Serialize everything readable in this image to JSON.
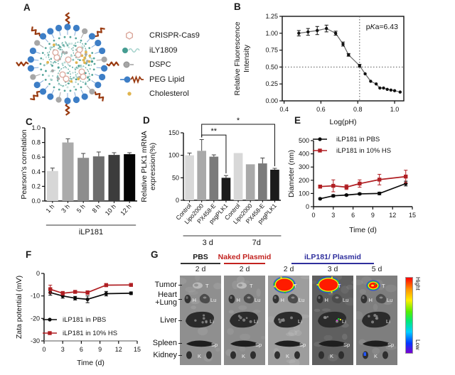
{
  "panels": {
    "A": "A",
    "B": "B",
    "C": "C",
    "D": "D",
    "E": "E",
    "F": "F",
    "G": "G"
  },
  "panelA": {
    "particle_colors": {
      "crispr": "#dba79b",
      "ily": "#459c91",
      "ily_light": "#a8d4ce",
      "dspc": "#a6a6a6",
      "peg": "#3d7ec6",
      "peg_tail": "#993a10",
      "chol": "#e0b44e"
    },
    "legend": [
      {
        "icon": "crispr-cas9-icon",
        "label": "CRISPR-Cas9",
        "color": "#dba79b"
      },
      {
        "icon": "ily1809-icon",
        "label": "iLY1809",
        "color": "#459c91"
      },
      {
        "icon": "dspc-icon",
        "label": "DSPC",
        "color": "#a6a6a6"
      },
      {
        "icon": "peg-lipid-icon",
        "label": "PEG Lipid",
        "color": "#3d7ec6"
      },
      {
        "icon": "cholesterol-icon",
        "label": "Cholesterol",
        "color": "#e0b44e"
      }
    ]
  },
  "chart_data": [
    {
      "id": "B",
      "type": "line",
      "frame": true,
      "xlabel": "Log(pH)",
      "ylabel_lines": [
        "Relative Fluorescence",
        "Intensity"
      ],
      "annotation": "pKa=6.43",
      "xlim": [
        0.39,
        1.05
      ],
      "ylim": [
        0,
        1.25
      ],
      "xticks": [
        0.4,
        0.6,
        0.8,
        1.0
      ],
      "xtick_labels": [
        "0.4",
        "0.6",
        "0.8",
        "1.0"
      ],
      "yticks": [
        0,
        0.25,
        0.5,
        0.75,
        1,
        1.25
      ],
      "ytick_labels": [
        "0.00",
        "0.25",
        "0.50",
        "0.75",
        "1.00",
        "1.25"
      ],
      "hline": 0.5,
      "vline": 0.81,
      "x": [
        0.48,
        0.53,
        0.58,
        0.63,
        0.68,
        0.72,
        0.75,
        0.81,
        0.84,
        0.87,
        0.9,
        0.92,
        0.94,
        0.96,
        0.98,
        1.0,
        1.03
      ],
      "series": [
        {
          "name": "relative fluorescence intensity",
          "color": "#111111",
          "marker": "circle",
          "values": [
            1.0,
            1.02,
            1.04,
            1.07,
            1.0,
            0.84,
            0.68,
            0.52,
            0.4,
            0.29,
            0.25,
            0.19,
            0.19,
            0.17,
            0.16,
            0.15,
            0.13
          ],
          "errors": [
            0.04,
            0.05,
            0.06,
            0.05,
            0.03,
            0.03,
            0.02,
            0.02,
            0,
            0,
            0,
            0,
            0,
            0,
            0,
            0,
            0
          ]
        }
      ]
    },
    {
      "id": "C",
      "type": "bar",
      "ylabel_lines": [
        "Pearson's correlation"
      ],
      "categories": [
        "1 h",
        "3 h",
        "5 h",
        "8 h",
        "10 h",
        "12 h"
      ],
      "values": [
        0.41,
        0.8,
        0.59,
        0.61,
        0.63,
        0.64
      ],
      "errors": [
        0.04,
        0.05,
        0.06,
        0.06,
        0.03,
        0.02
      ],
      "bar_colors": [
        "#d7d7d7",
        "#ababab",
        "#8d8d8d",
        "#6d6d6d",
        "#3c3c3c",
        "#050505"
      ],
      "ylim": [
        0,
        1.0
      ],
      "yticks": [
        0,
        0.2,
        0.4,
        0.6,
        0.8,
        1.0
      ],
      "ytick_labels": [
        "0.0",
        "0.2",
        "0.4",
        "0.6",
        "0.8",
        "1.0"
      ],
      "groups": [
        {
          "label": "iLP181",
          "from": 0,
          "to": 5
        }
      ]
    },
    {
      "id": "D",
      "type": "bar",
      "ylabel_lines": [
        "Relative PLK1 mRNA",
        "expression(%)"
      ],
      "categories": [
        "Control",
        "Lipo2000",
        "PX458-E",
        "psgPLK1",
        "Control",
        "Lipo2000",
        "PX458-E",
        "psgPLK1"
      ],
      "values": [
        100,
        110,
        97,
        50,
        105,
        80,
        82,
        68
      ],
      "errors": [
        5,
        25,
        4,
        5,
        0,
        0,
        12,
        3
      ],
      "bar_colors": [
        "#d8d8d8",
        "#a9a9a9",
        "#7b7b7b",
        "#1b1b1b",
        "#d8d8d8",
        "#a9a9a9",
        "#7b7b7b",
        "#1b1b1b"
      ],
      "ylim": [
        0,
        150
      ],
      "yticks": [
        0,
        50,
        100,
        150
      ],
      "ytick_labels": [
        "0",
        "50",
        "100",
        "150"
      ],
      "groups": [
        {
          "label": "3 d",
          "from": 0,
          "to": 3
        },
        {
          "label": "7d",
          "from": 4,
          "to": 7
        }
      ],
      "significance": [
        {
          "label": "**",
          "from": 1,
          "to": 3,
          "y": 145
        },
        {
          "label": "*",
          "from": 1,
          "to": 7,
          "y": 169
        }
      ]
    },
    {
      "id": "E",
      "type": "line",
      "xlabel": "Time (d)",
      "ylabel_lines": [
        "Diameter (nm)"
      ],
      "xlim": [
        0,
        15
      ],
      "ylim": [
        0,
        500
      ],
      "xticks": [
        0,
        3,
        6,
        9,
        12,
        15
      ],
      "xtick_labels": [
        "0",
        "3",
        "6",
        "9",
        "12",
        "15"
      ],
      "yticks": [
        0,
        100,
        200,
        300,
        400,
        500
      ],
      "ytick_labels": [
        "0",
        "100",
        "200",
        "300",
        "400",
        "500"
      ],
      "x": [
        1,
        3,
        5,
        7,
        10,
        14
      ],
      "series": [
        {
          "name": "iLP181 in PBS",
          "color": "#0a0a0a",
          "marker": "circle",
          "values": [
            60,
            82,
            88,
            97,
            100,
            175
          ],
          "errors": [
            6,
            9,
            6,
            7,
            10,
            18
          ]
        },
        {
          "name": "iLP181 in 10% HS",
          "color": "#b01f23",
          "marker": "square",
          "values": [
            152,
            158,
            148,
            175,
            205,
            228
          ],
          "errors": [
            12,
            45,
            18,
            28,
            40,
            48
          ]
        }
      ],
      "legend_position": "top-left"
    },
    {
      "id": "F",
      "type": "line",
      "xlabel": "Time (d)",
      "ylabel_lines": [
        "Zata potential (mV)"
      ],
      "xlim": [
        0,
        15
      ],
      "ylim": [
        -30,
        0
      ],
      "xticks": [
        0,
        3,
        6,
        9,
        12,
        15
      ],
      "xtick_labels": [
        "0",
        "3",
        "6",
        "9",
        "12",
        "15"
      ],
      "yticks": [
        0,
        -10,
        -20,
        -30
      ],
      "ytick_labels": [
        "0",
        "-10",
        "-20",
        "-30"
      ],
      "x": [
        1,
        3,
        5,
        7,
        10,
        14
      ],
      "series": [
        {
          "name": "iLP181 in PBS",
          "color": "#0a0a0a",
          "marker": "circle",
          "values": [
            -8.5,
            -10,
            -11,
            -11.5,
            -9,
            -8.8
          ],
          "errors": [
            1.2,
            1,
            0.8,
            1.5,
            1,
            0.6
          ]
        },
        {
          "name": "iLP181 in 10% HS",
          "color": "#b01f23",
          "marker": "square",
          "values": [
            -7,
            -8.8,
            -8.2,
            -8.5,
            -5.2,
            -5.1
          ],
          "errors": [
            1.8,
            0.8,
            0.6,
            0.8,
            0.7,
            0.6
          ]
        }
      ],
      "legend_position": "bottom-left",
      "x_axis_color": "#8f8f8f"
    }
  ],
  "panelG": {
    "groups": [
      {
        "label": "PBS",
        "color": "#1a1a1a"
      },
      {
        "label": "Naked Plasmid",
        "color": "#c2221f"
      },
      {
        "label": "iLP181/ Plasmid",
        "color": "#2f2f9d"
      }
    ],
    "columns": [
      {
        "group": 0,
        "day": "2 d",
        "tumor_signal": "none"
      },
      {
        "group": 1,
        "day": "2 d",
        "tumor_signal": "none"
      },
      {
        "group": 2,
        "day": "2 d",
        "tumor_signal": "strong"
      },
      {
        "group": 2,
        "day": "3 d",
        "tumor_signal": "strong",
        "liver_speck": true
      },
      {
        "group": 2,
        "day": "5 d",
        "tumor_signal": "weak",
        "kidney_speck": true
      }
    ],
    "row_labels": [
      "Tumor",
      "Heart\n+Lung",
      "Liver",
      "Spleen",
      "Kidney"
    ],
    "organ_letters": {
      "tumor": "T",
      "heart": "H",
      "lung": "Lu",
      "liver": "Li",
      "spleen": "Sp",
      "kidney": "K"
    },
    "colorbar": {
      "top_label": "Hight",
      "bottom_label": "Low"
    }
  }
}
